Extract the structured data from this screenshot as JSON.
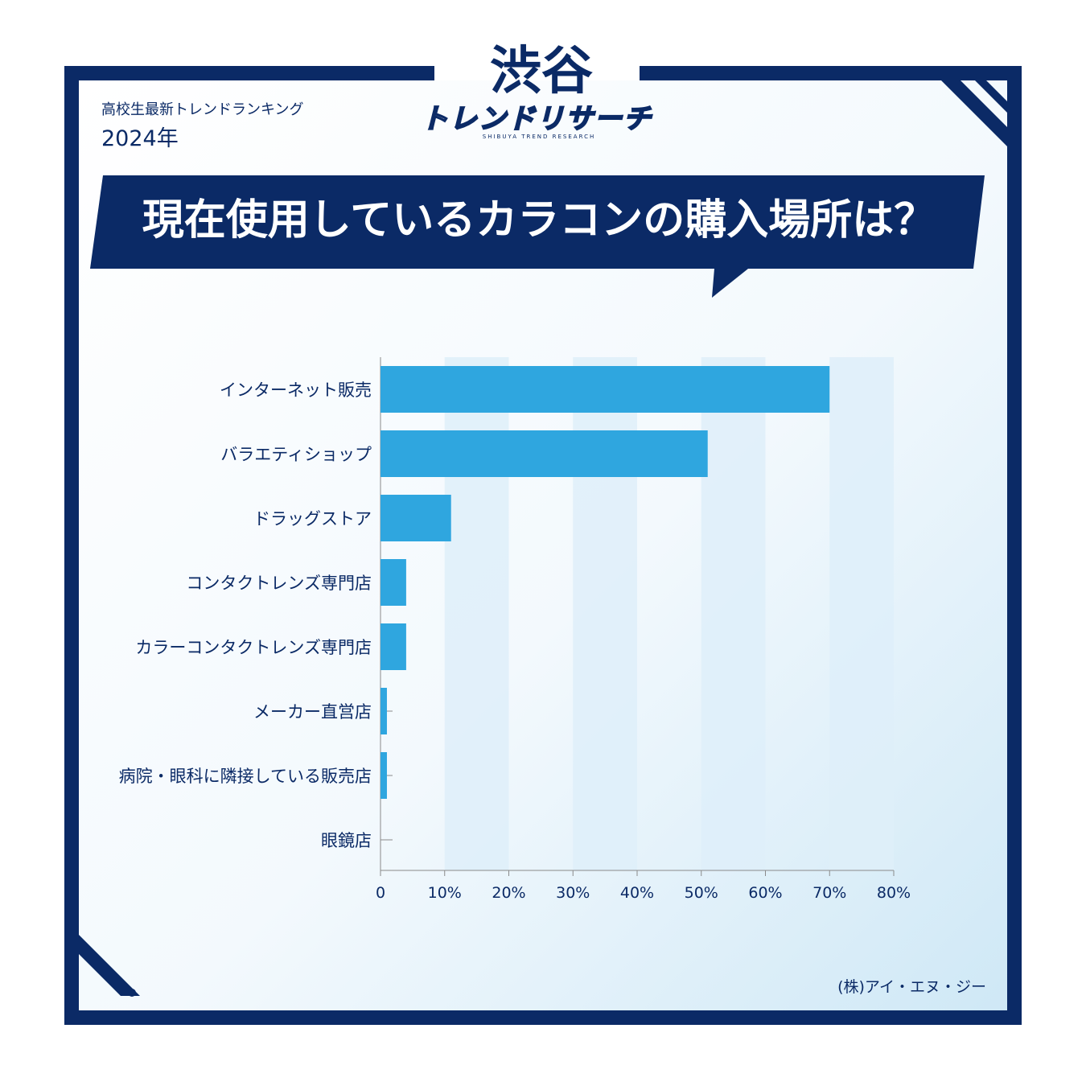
{
  "header": {
    "subtitle": "高校生最新トレンドランキング",
    "year": "2024年"
  },
  "logo": {
    "main": "渋谷",
    "sub": "トレンドリサーチ",
    "english": "SHIBUYA TREND RESEARCH"
  },
  "question": "現在使用しているカラコンの購入場所は？",
  "credit": "(株)アイ・エヌ・ジー",
  "colors": {
    "navy": "#0b2a66",
    "bar": "#2fa6df",
    "band": "#deeff9"
  },
  "chart_data": {
    "type": "bar",
    "orientation": "horizontal",
    "title": "現在使用しているカラコンの購入場所は？",
    "categories": [
      "インターネット販売",
      "バラエティショップ",
      "ドラッグストア",
      "コンタクトレンズ専門店",
      "カラーコンタクトレンズ専門店",
      "メーカー直営店",
      "病院・眼科に隣接している販売店",
      "眼鏡店"
    ],
    "values": [
      70,
      51,
      11,
      4,
      4,
      1,
      1,
      0
    ],
    "xlim": [
      0,
      80
    ],
    "xticks": [
      0,
      10,
      20,
      30,
      40,
      50,
      60,
      70,
      80
    ],
    "xtick_labels": [
      "0",
      "10%",
      "20%",
      "30%",
      "40%",
      "50%",
      "60%",
      "70%",
      "80%"
    ],
    "xlabel": "",
    "ylabel": ""
  }
}
